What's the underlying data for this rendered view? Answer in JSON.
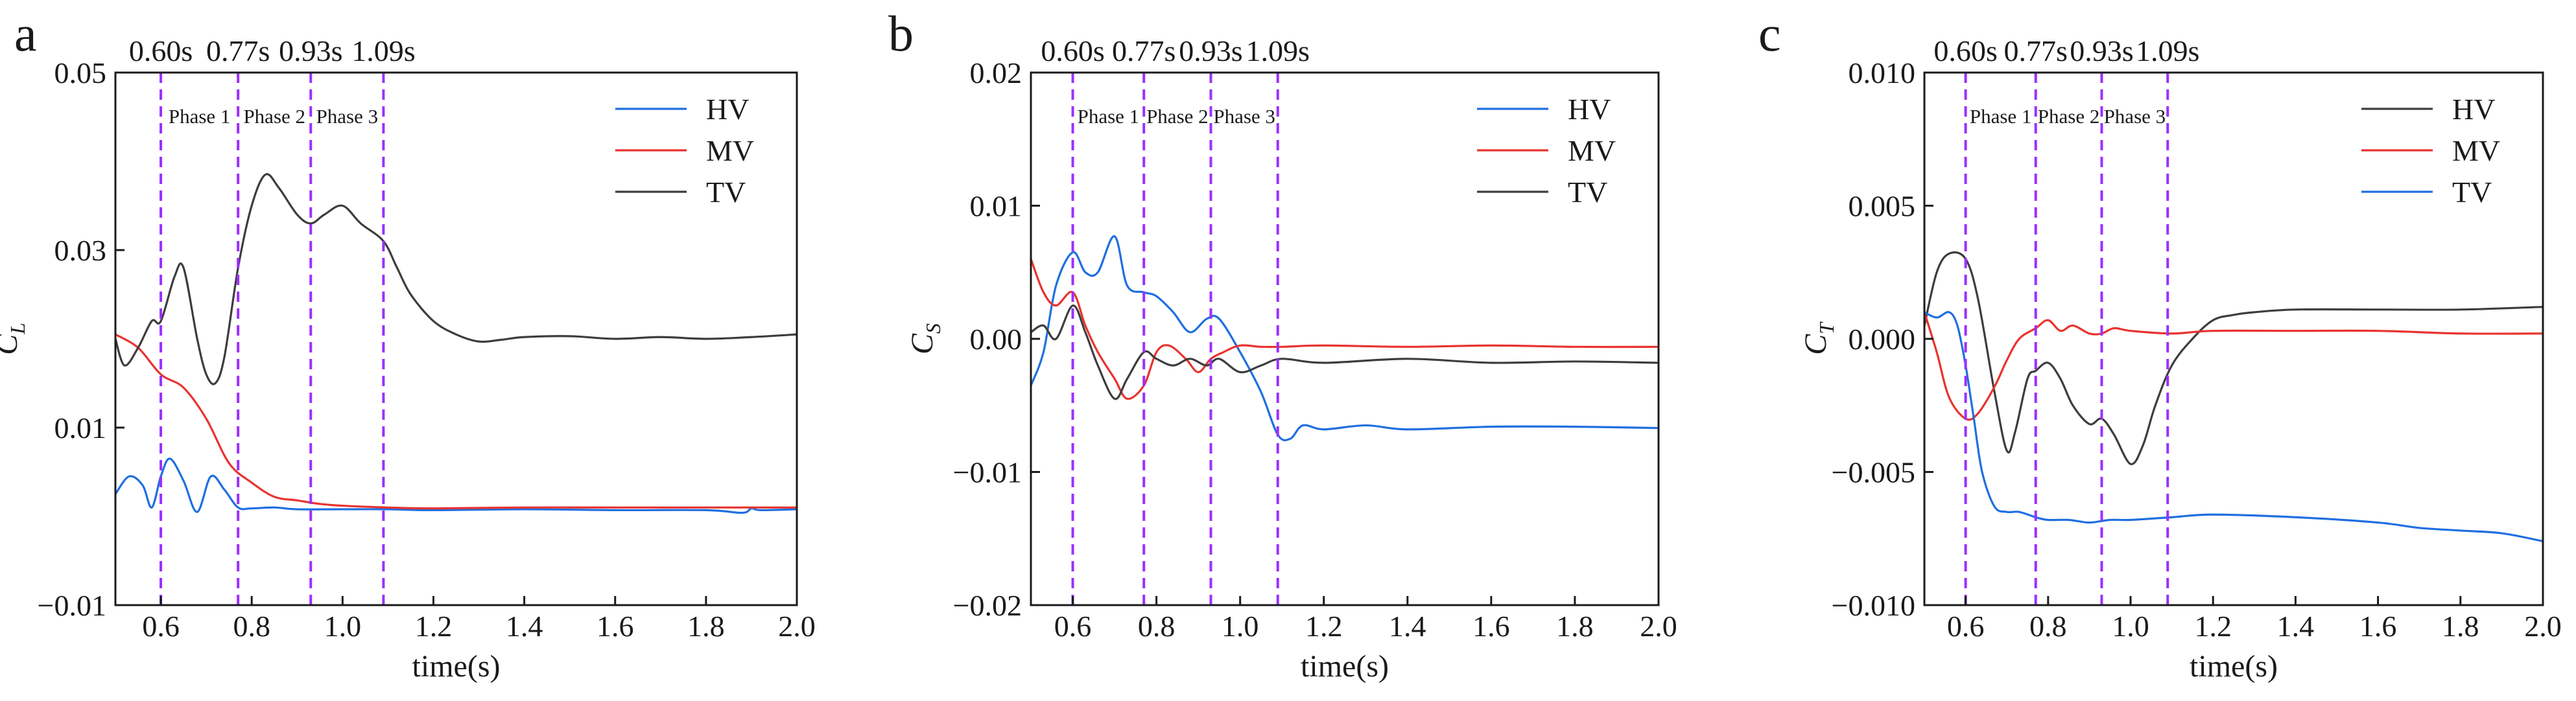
{
  "chart_data": [
    {
      "panel": "a",
      "type": "line",
      "xlabel": "time(s)",
      "ylabel": "C",
      "ylabel_sub": "L",
      "xlim": [
        0.5,
        2.0
      ],
      "ylim": [
        -0.01,
        0.05
      ],
      "xticks": [
        0.6,
        0.8,
        1.0,
        1.2,
        1.4,
        1.6,
        1.8,
        2.0
      ],
      "xtick_labels": [
        "0.6",
        "0.8",
        "1.0",
        "1.2",
        "1.4",
        "1.6",
        "1.8",
        "2.0"
      ],
      "yticks": [
        -0.01,
        0.01,
        0.03,
        0.05
      ],
      "ytick_labels": [
        "−0.01",
        "0.01",
        "0.03",
        "0.05"
      ],
      "time_markers": [
        0.6,
        0.77,
        0.93,
        1.09
      ],
      "time_marker_labels": [
        "0.60s",
        "0.77s",
        "0.93s",
        "1.09s"
      ],
      "phase_labels": [
        "Phase 1",
        "Phase 2",
        "Phase 3"
      ],
      "series": [
        {
          "name": "HV",
          "color": "#1f6fe0",
          "x": [
            0.5,
            0.53,
            0.56,
            0.58,
            0.6,
            0.62,
            0.65,
            0.68,
            0.71,
            0.74,
            0.77,
            0.8,
            0.85,
            0.9,
            1.0,
            1.1,
            1.2,
            1.4,
            1.6,
            1.8,
            1.88,
            1.9,
            1.92,
            2.0
          ],
          "y": [
            0.0025,
            0.0045,
            0.0035,
            0.001,
            0.0045,
            0.0065,
            0.004,
            0.0005,
            0.0045,
            0.003,
            0.001,
            0.0009,
            0.001,
            0.0008,
            0.0008,
            0.0008,
            0.0007,
            0.0008,
            0.0007,
            0.0007,
            0.0004,
            0.0009,
            0.0007,
            0.0008
          ]
        },
        {
          "name": "MV",
          "color": "#e8332f",
          "x": [
            0.5,
            0.55,
            0.6,
            0.65,
            0.7,
            0.75,
            0.8,
            0.85,
            0.9,
            0.95,
            1.0,
            1.1,
            1.2,
            1.4,
            1.6,
            1.8,
            2.0
          ],
          "y": [
            0.0205,
            0.019,
            0.016,
            0.0145,
            0.011,
            0.006,
            0.0038,
            0.0022,
            0.0018,
            0.0014,
            0.0012,
            0.001,
            0.0009,
            0.001,
            0.001,
            0.001,
            0.001
          ]
        },
        {
          "name": "TV",
          "color": "#3d3d3d",
          "x": [
            0.5,
            0.52,
            0.55,
            0.58,
            0.6,
            0.63,
            0.65,
            0.68,
            0.7,
            0.72,
            0.74,
            0.77,
            0.8,
            0.83,
            0.86,
            0.9,
            0.93,
            0.96,
            1.0,
            1.04,
            1.09,
            1.12,
            1.15,
            1.2,
            1.25,
            1.3,
            1.35,
            1.4,
            1.5,
            1.6,
            1.7,
            1.8,
            1.9,
            2.0
          ],
          "y": [
            0.02,
            0.017,
            0.019,
            0.022,
            0.022,
            0.027,
            0.028,
            0.02,
            0.016,
            0.015,
            0.018,
            0.028,
            0.035,
            0.0385,
            0.037,
            0.034,
            0.033,
            0.034,
            0.035,
            0.033,
            0.031,
            0.028,
            0.025,
            0.022,
            0.0205,
            0.0197,
            0.0199,
            0.0202,
            0.0203,
            0.02,
            0.0202,
            0.02,
            0.0202,
            0.0205
          ]
        }
      ],
      "legend": {
        "position": "top-right",
        "entries": [
          "HV",
          "MV",
          "TV"
        ]
      }
    },
    {
      "panel": "b",
      "type": "line",
      "xlabel": "time(s)",
      "ylabel": "C",
      "ylabel_sub": "S",
      "xlim": [
        0.5,
        2.0
      ],
      "ylim": [
        -0.02,
        0.02
      ],
      "xticks": [
        0.6,
        0.8,
        1.0,
        1.2,
        1.4,
        1.6,
        1.8,
        2.0
      ],
      "xtick_labels": [
        "0.6",
        "0.8",
        "1.0",
        "1.2",
        "1.4",
        "1.6",
        "1.8",
        "2.0"
      ],
      "yticks": [
        -0.02,
        -0.01,
        0.0,
        0.01,
        0.02
      ],
      "ytick_labels": [
        "−0.02",
        "−0.01",
        "0.00",
        "0.01",
        "0.02"
      ],
      "time_markers": [
        0.6,
        0.77,
        0.93,
        1.09
      ],
      "time_marker_labels": [
        "0.60s",
        "0.77s",
        "0.93s",
        "1.09s"
      ],
      "phase_labels": [
        "Phase 1",
        "Phase 2",
        "Phase 3"
      ],
      "series": [
        {
          "name": "HV",
          "color": "#1f6fe0",
          "x": [
            0.5,
            0.53,
            0.56,
            0.6,
            0.63,
            0.66,
            0.7,
            0.73,
            0.77,
            0.8,
            0.84,
            0.88,
            0.92,
            0.95,
            1.0,
            1.05,
            1.09,
            1.12,
            1.15,
            1.2,
            1.3,
            1.4,
            1.6,
            1.8,
            2.0
          ],
          "y": [
            -0.0035,
            -0.001,
            0.004,
            0.0065,
            0.005,
            0.005,
            0.0077,
            0.004,
            0.0035,
            0.0032,
            0.002,
            0.0005,
            0.0015,
            0.0015,
            -0.001,
            -0.004,
            -0.0072,
            -0.0075,
            -0.0065,
            -0.0068,
            -0.0065,
            -0.0068,
            -0.0066,
            -0.0066,
            -0.0067
          ]
        },
        {
          "name": "MV",
          "color": "#e8332f",
          "x": [
            0.5,
            0.53,
            0.56,
            0.6,
            0.63,
            0.66,
            0.7,
            0.73,
            0.77,
            0.8,
            0.83,
            0.87,
            0.9,
            0.93,
            0.96,
            1.0,
            1.05,
            1.1,
            1.2,
            1.4,
            1.6,
            1.8,
            2.0
          ],
          "y": [
            0.006,
            0.0035,
            0.0025,
            0.0035,
            0.001,
            -0.001,
            -0.003,
            -0.0045,
            -0.0035,
            -0.001,
            -0.0005,
            -0.0015,
            -0.0025,
            -0.0015,
            -0.001,
            -0.0005,
            -0.0006,
            -0.0006,
            -0.0005,
            -0.0006,
            -0.0005,
            -0.0006,
            -0.0006
          ]
        },
        {
          "name": "TV",
          "color": "#3d3d3d",
          "x": [
            0.5,
            0.53,
            0.56,
            0.6,
            0.63,
            0.66,
            0.7,
            0.73,
            0.77,
            0.8,
            0.84,
            0.88,
            0.92,
            0.95,
            1.0,
            1.05,
            1.1,
            1.2,
            1.4,
            1.6,
            1.8,
            2.0
          ],
          "y": [
            0.0005,
            0.001,
            0.0,
            0.0025,
            0.0005,
            -0.002,
            -0.0045,
            -0.003,
            -0.001,
            -0.0015,
            -0.002,
            -0.0015,
            -0.002,
            -0.0015,
            -0.0025,
            -0.002,
            -0.0015,
            -0.0018,
            -0.0015,
            -0.0018,
            -0.0017,
            -0.0018
          ]
        }
      ],
      "legend": {
        "position": "top-right",
        "entries": [
          "HV",
          "MV",
          "TV"
        ]
      }
    },
    {
      "panel": "c",
      "type": "line",
      "xlabel": "time(s)",
      "ylabel": "C",
      "ylabel_sub": "T",
      "xlim": [
        0.5,
        2.0
      ],
      "ylim": [
        -0.01,
        0.01
      ],
      "xticks": [
        0.6,
        0.8,
        1.0,
        1.2,
        1.4,
        1.6,
        1.8,
        2.0
      ],
      "xtick_labels": [
        "0.6",
        "0.8",
        "1.0",
        "1.2",
        "1.4",
        "1.6",
        "1.8",
        "2.0"
      ],
      "yticks": [
        -0.01,
        -0.005,
        0.0,
        0.005,
        0.01
      ],
      "ytick_labels": [
        "−0.010",
        "−0.005",
        "0.000",
        "0.005",
        "0.010"
      ],
      "time_markers": [
        0.6,
        0.77,
        0.93,
        1.09
      ],
      "time_marker_labels": [
        "0.60s",
        "0.77s",
        "0.93s",
        "1.09s"
      ],
      "phase_labels": [
        "Phase 1",
        "Phase 2",
        "Phase 3"
      ],
      "series": [
        {
          "name": "HV",
          "color": "#3d3d3d",
          "x": [
            0.5,
            0.53,
            0.56,
            0.6,
            0.63,
            0.67,
            0.7,
            0.72,
            0.75,
            0.77,
            0.8,
            0.83,
            0.86,
            0.9,
            0.93,
            0.96,
            1.0,
            1.03,
            1.06,
            1.1,
            1.15,
            1.2,
            1.25,
            1.3,
            1.4,
            1.6,
            1.8,
            2.0
          ],
          "y": [
            0.0005,
            0.0025,
            0.0032,
            0.003,
            0.0015,
            -0.002,
            -0.0042,
            -0.0035,
            -0.0015,
            -0.0012,
            -0.0009,
            -0.0015,
            -0.0025,
            -0.0032,
            -0.003,
            -0.0036,
            -0.0047,
            -0.004,
            -0.0025,
            -0.001,
            0.0,
            0.0007,
            0.0009,
            0.001,
            0.0011,
            0.0011,
            0.0011,
            0.0012
          ]
        },
        {
          "name": "MV",
          "color": "#e8332f",
          "x": [
            0.5,
            0.53,
            0.56,
            0.6,
            0.63,
            0.67,
            0.7,
            0.73,
            0.77,
            0.8,
            0.83,
            0.86,
            0.9,
            0.93,
            0.96,
            1.0,
            1.1,
            1.2,
            1.4,
            1.6,
            1.8,
            2.0
          ],
          "y": [
            0.001,
            -0.0005,
            -0.0022,
            -0.003,
            -0.0028,
            -0.0018,
            -0.0008,
            0.0,
            0.0004,
            0.0007,
            0.0003,
            0.0005,
            0.0002,
            0.0002,
            0.0004,
            0.0003,
            0.0002,
            0.0003,
            0.0003,
            0.0003,
            0.0002,
            0.0002
          ]
        },
        {
          "name": "TV",
          "color": "#1f6fe0",
          "x": [
            0.5,
            0.53,
            0.56,
            0.58,
            0.6,
            0.62,
            0.64,
            0.67,
            0.7,
            0.73,
            0.77,
            0.8,
            0.85,
            0.9,
            0.95,
            1.0,
            1.1,
            1.2,
            1.4,
            1.6,
            1.7,
            1.8,
            1.9,
            2.0
          ],
          "y": [
            0.001,
            0.0008,
            0.001,
            0.0005,
            -0.001,
            -0.003,
            -0.005,
            -0.0063,
            -0.0065,
            -0.0065,
            -0.0067,
            -0.0068,
            -0.0068,
            -0.0069,
            -0.0068,
            -0.0068,
            -0.0067,
            -0.0066,
            -0.0067,
            -0.0069,
            -0.0071,
            -0.0072,
            -0.0073,
            -0.0076
          ]
        }
      ],
      "legend": {
        "position": "top-right",
        "entries": [
          "HV",
          "MV",
          "TV"
        ]
      }
    }
  ]
}
